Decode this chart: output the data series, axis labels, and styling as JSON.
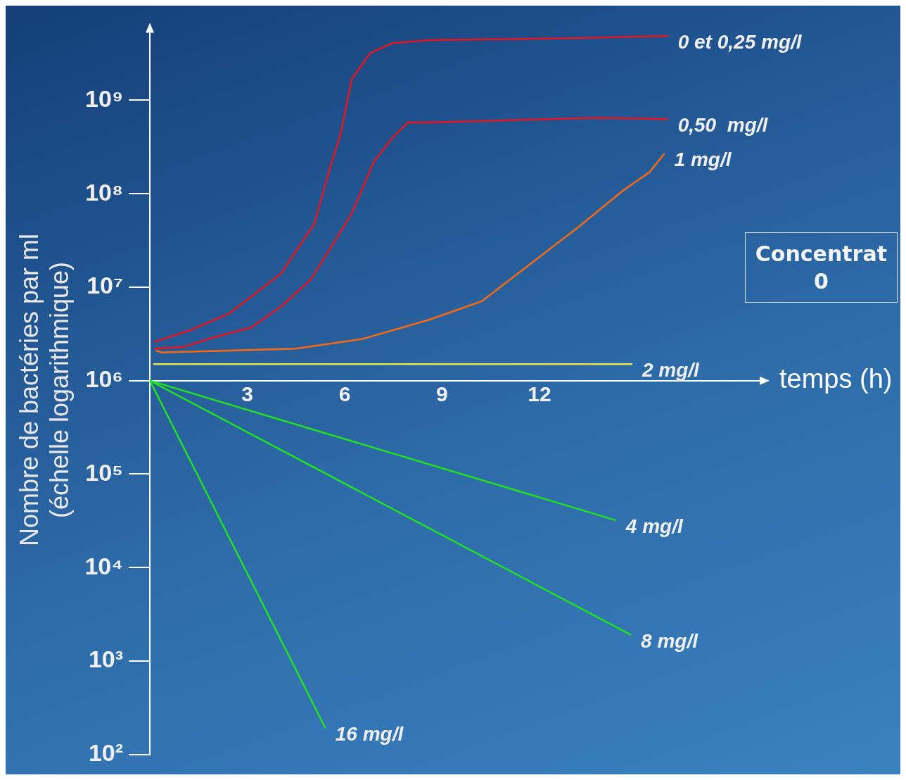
{
  "chart_data": {
    "type": "line",
    "xlabel": "temps (h)",
    "ylabel": "Nombre de bactéries par ml\n(échelle logarithmique)",
    "log": "y",
    "grid": false,
    "legend": false,
    "marker": "none",
    "line_style": "solid",
    "xlim": [
      0,
      19
    ],
    "xticks": [
      3,
      6,
      9,
      12
    ],
    "ylim": [
      100,
      6300000000
    ],
    "yticks": [
      {
        "value": 100,
        "label": "10²"
      },
      {
        "value": 1000,
        "label": "10³"
      },
      {
        "value": 10000,
        "label": "10⁴"
      },
      {
        "value": 100000,
        "label": "10⁵"
      },
      {
        "value": 1000000,
        "label": "10⁶"
      },
      {
        "value": 10000000,
        "label": "10⁷"
      },
      {
        "value": 100000000,
        "label": "10⁸"
      },
      {
        "value": 1000000000,
        "label": "10⁹"
      }
    ],
    "annotations": [
      "Concentrat\n0"
    ],
    "series": [
      {
        "name": "0 et 0,25 mg/l",
        "color": "#e8141e",
        "x": [
          0.14,
          1.28,
          2.43,
          3.12,
          4.04,
          5.07,
          5.53,
          5.87,
          6.22,
          6.79,
          7.48,
          8.62,
          10.46,
          12.75,
          15.96
        ],
        "values": [
          2600000,
          3500000,
          5200000,
          7900000,
          14000000,
          48000000,
          180000000,
          430000000,
          1700000000,
          3200000000,
          4100000000,
          4400000000,
          4500000000,
          4600000000,
          4900000000
        ]
      },
      {
        "name": "0,50  mg/l",
        "color": "#e8141e",
        "x": [
          0.14,
          1.05,
          1.97,
          3.12,
          4.04,
          4.95,
          5.64,
          6.22,
          6.9,
          7.48,
          7.94,
          8.62,
          11.6,
          13.9,
          15.96
        ],
        "values": [
          2200000,
          2300000,
          2900000,
          3700000,
          6200000,
          12000000,
          29000000,
          62000000,
          220000000,
          400000000,
          580000000,
          580000000,
          620000000,
          650000000,
          630000000
        ]
      },
      {
        "name": "1 mg/l",
        "color": "#ff6a10",
        "x": [
          0.18,
          0.37,
          2.43,
          4.5,
          6.56,
          8.62,
          10.23,
          11.83,
          13.2,
          14.6,
          15.39,
          15.85
        ],
        "values": [
          2100000,
          2000000,
          2100000,
          2200000,
          2800000,
          4500000,
          7100000,
          19000000,
          44000000,
          110000000,
          170000000,
          270000000
        ]
      },
      {
        "name": "2 mg/l",
        "color": "#e6e64a",
        "x": [
          0.1,
          14.86
        ],
        "values": [
          1500000,
          1500000
        ]
      },
      {
        "name": "4 mg/l",
        "color": "#22e022",
        "x": [
          0,
          14.36
        ],
        "values": [
          1000000,
          32000
        ]
      },
      {
        "name": "8 mg/l",
        "color": "#22e022",
        "x": [
          0,
          14.82
        ],
        "values": [
          1000000,
          1900
        ]
      },
      {
        "name": "16 mg/l",
        "color": "#22e022",
        "x": [
          0,
          5.41
        ],
        "values": [
          1000000,
          190
        ]
      }
    ]
  }
}
